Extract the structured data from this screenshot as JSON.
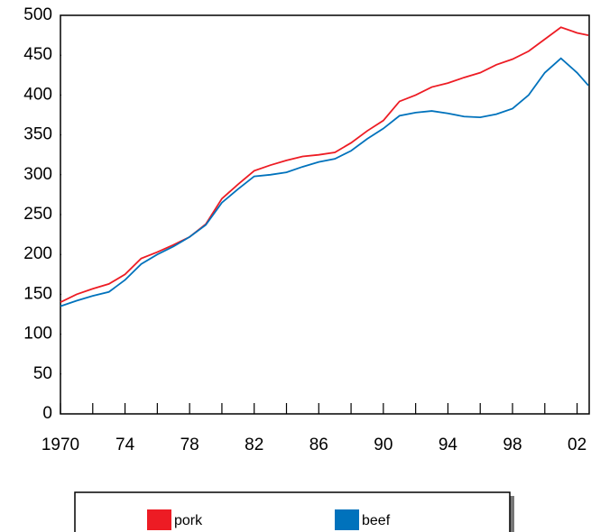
{
  "chart_data": {
    "type": "line",
    "x": [
      1970,
      1971,
      1972,
      1973,
      1974,
      1975,
      1976,
      1977,
      1978,
      1979,
      1980,
      1981,
      1982,
      1983,
      1984,
      1985,
      1986,
      1987,
      1988,
      1989,
      1990,
      1991,
      1992,
      1993,
      1994,
      1995,
      1996,
      1997,
      1998,
      1999,
      2000,
      2001,
      2002,
      2002.7
    ],
    "series": [
      {
        "name": "pork",
        "color": "#ed1c24",
        "values": [
          140,
          150,
          157,
          163,
          175,
          195,
          203,
          212,
          222,
          238,
          270,
          288,
          305,
          312,
          318,
          323,
          325,
          328,
          340,
          355,
          368,
          392,
          400,
          410,
          415,
          422,
          428,
          438,
          445,
          455,
          470,
          485,
          478,
          475
        ]
      },
      {
        "name": "beef",
        "color": "#0072bc",
        "values": [
          135,
          142,
          148,
          153,
          168,
          188,
          200,
          210,
          222,
          237,
          265,
          282,
          298,
          300,
          303,
          310,
          316,
          320,
          330,
          345,
          358,
          374,
          378,
          380,
          377,
          373,
          372,
          376,
          383,
          400,
          428,
          446,
          428,
          412
        ]
      }
    ],
    "xlim": [
      1970,
      2002.75
    ],
    "xticks": [
      1970,
      {
        "value": 1974,
        "label": "74"
      },
      {
        "value": 1978,
        "label": "78"
      },
      {
        "value": 1982,
        "label": "82"
      },
      {
        "value": 1986,
        "label": "86"
      },
      {
        "value": 1990,
        "label": "90"
      },
      {
        "value": 1994,
        "label": "94"
      },
      {
        "value": 1998,
        "label": "98"
      },
      {
        "value": 2002,
        "label": "02"
      }
    ],
    "xminorticks": [
      1972,
      1976,
      1980,
      1984,
      1988,
      1992,
      1996,
      2000
    ],
    "ylim": [
      0,
      500
    ],
    "yticks": [
      0,
      50,
      100,
      150,
      200,
      250,
      300,
      350,
      400,
      450,
      500
    ],
    "grid": false
  }
}
